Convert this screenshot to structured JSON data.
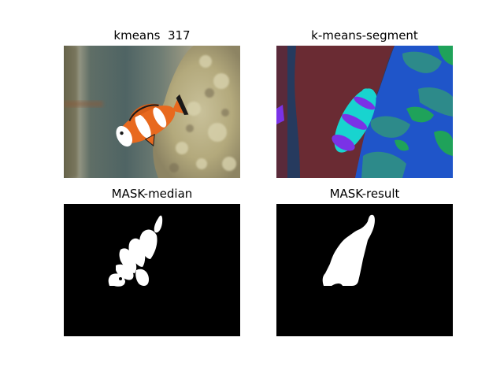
{
  "panels": [
    {
      "title": "kmeans  317"
    },
    {
      "title": "k-means-segment"
    },
    {
      "title": "MASK-median"
    },
    {
      "title": "MASK-result"
    }
  ],
  "colors": {
    "background": "#ffffff",
    "segment_dark_navy": "#263a5e",
    "segment_maroon": "#6a2b33",
    "segment_blue": "#1f55c9",
    "segment_teal": "#2d8a8a",
    "segment_green": "#1fa25a",
    "segment_cyan": "#18d4cf",
    "segment_purple": "#7a32e6",
    "fish_orange": "#e8691e",
    "mask_white": "#ffffff",
    "mask_black": "#000000"
  }
}
